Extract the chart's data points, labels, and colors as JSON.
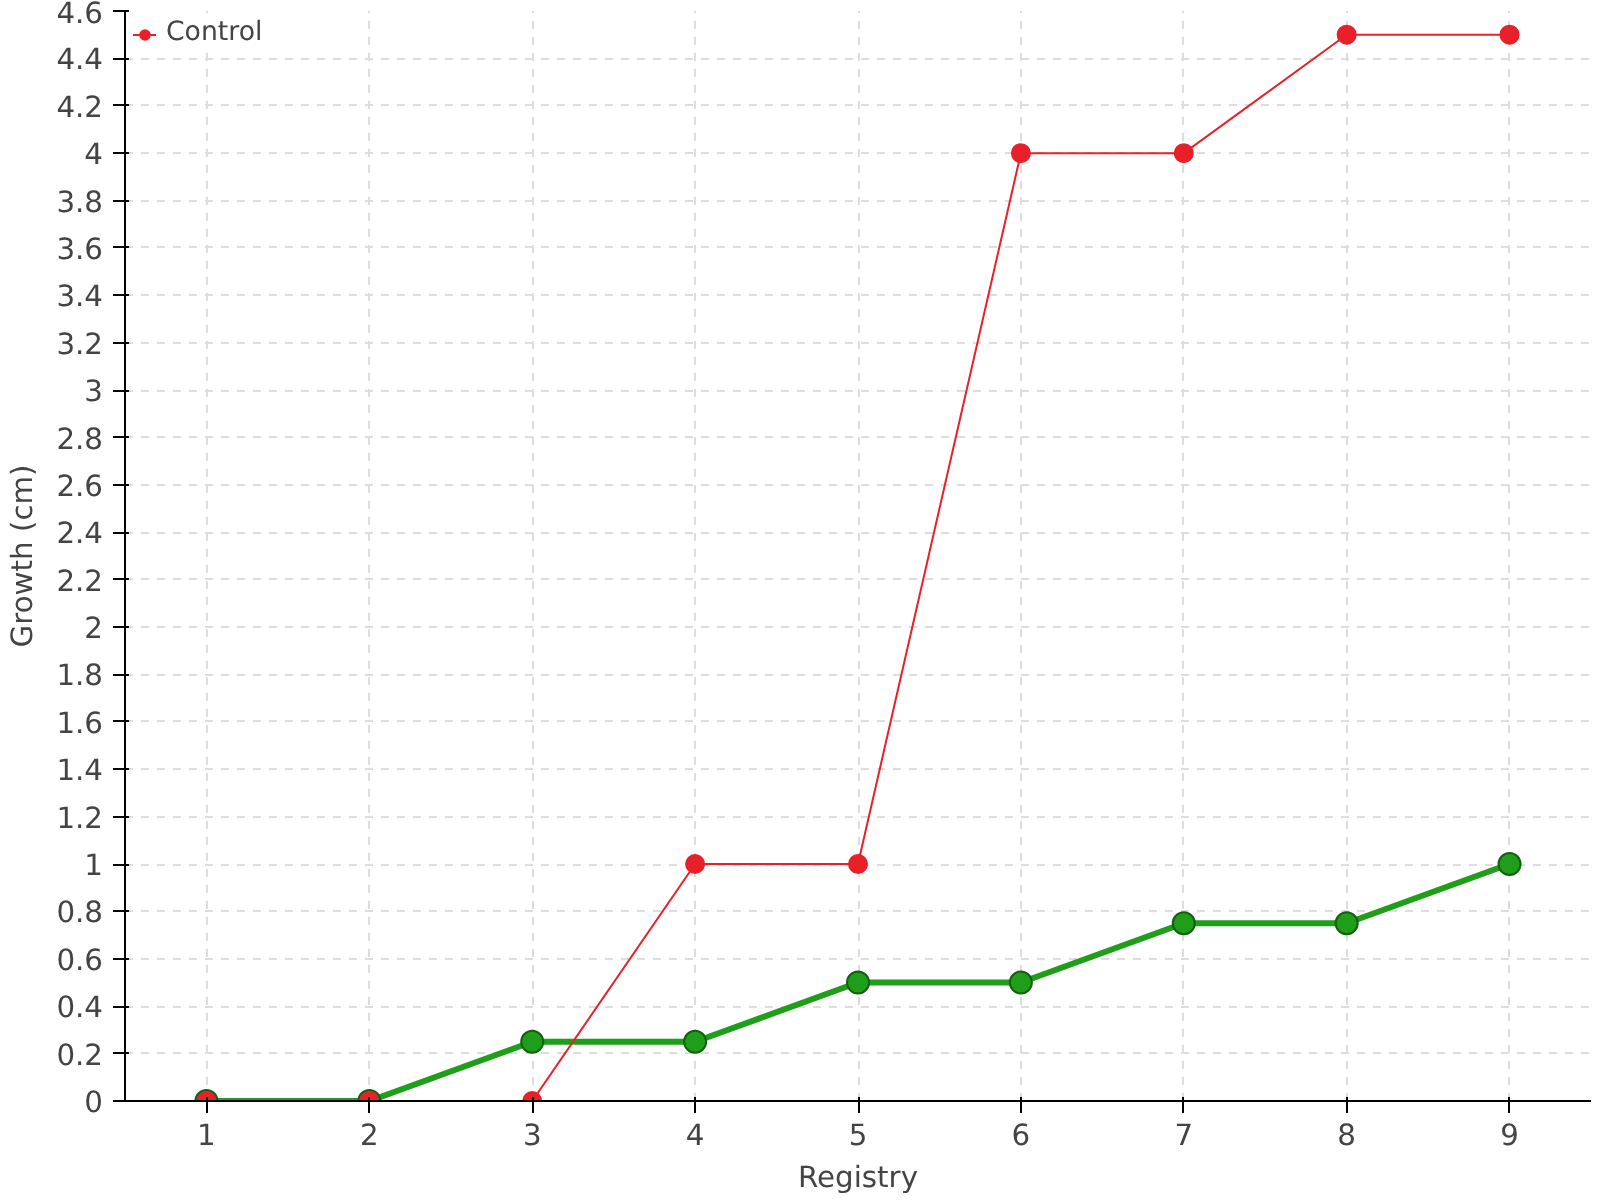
{
  "chart_data": {
    "type": "line",
    "xlabel": "Registry",
    "ylabel": "Growth (cm)",
    "x": [
      1,
      2,
      3,
      4,
      5,
      6,
      7,
      8,
      9
    ],
    "series": [
      {
        "color": "#1f9e1a",
        "values": [
          0,
          0,
          0.25,
          0.25,
          0.5,
          0.5,
          0.75,
          0.75,
          1
        ]
      },
      {
        "name": "Control",
        "color": "#e8202a",
        "values": [
          0,
          0,
          0,
          1,
          1,
          4,
          4,
          4.5,
          4.5
        ]
      }
    ],
    "xlim": [
      0.5,
      9.5
    ],
    "xticks": [
      1,
      2,
      3,
      4,
      5,
      6,
      7,
      8,
      9
    ],
    "ylim": [
      0,
      4.6
    ],
    "yticks": [
      0,
      0.2,
      0.4,
      0.6,
      0.8,
      1,
      1.2,
      1.4,
      1.6,
      1.8,
      2,
      2.2,
      2.4,
      2.6,
      2.8,
      3,
      3.2,
      3.4,
      3.6,
      3.8,
      4,
      4.2,
      4.4,
      4.6
    ],
    "grid": true,
    "legend": "top left",
    "marker": "circle",
    "line_style": "solid"
  }
}
